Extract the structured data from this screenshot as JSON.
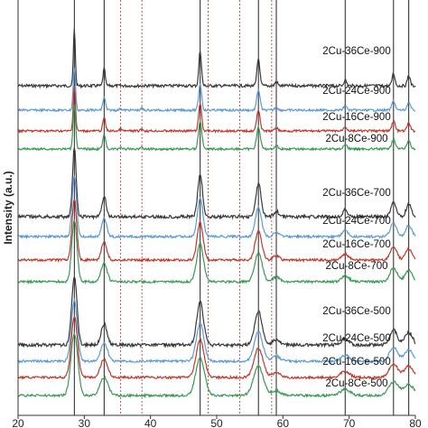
{
  "chart_data": {
    "type": "line",
    "xlabel": "",
    "ylabel": "Intensity (a.u.)",
    "xlim": [
      20,
      80
    ],
    "x_ticks": [
      "20",
      "30",
      "40",
      "50",
      "60",
      "70",
      "80"
    ],
    "grid": false,
    "legend": "inline labels at right",
    "reference_lines": {
      "solid": [
        28.5,
        33.0,
        47.5,
        56.3,
        59.0,
        69.4,
        76.7,
        79.0
      ],
      "dashed": [
        35.5,
        38.7,
        48.7,
        53.5,
        58.3
      ]
    },
    "series": [
      {
        "name": "2Cu-36Ce-900",
        "group": "900",
        "color": "#3a3a3a"
      },
      {
        "name": "2Cu-24Ce-900",
        "group": "900",
        "color": "#5b9bd5"
      },
      {
        "name": "2Cu-16Ce-900",
        "group": "900",
        "color": "#c0392b"
      },
      {
        "name": "2Cu-8Ce-900",
        "group": "900",
        "color": "#3a9a55"
      },
      {
        "name": "2Cu-36Ce-700",
        "group": "700",
        "color": "#3a3a3a"
      },
      {
        "name": "2Cu-24Ce-700",
        "group": "700",
        "color": "#5b9bd5"
      },
      {
        "name": "2Cu-16Ce-700",
        "group": "700",
        "color": "#c0392b"
      },
      {
        "name": "2Cu-8Ce-700",
        "group": "700",
        "color": "#3a9a55"
      },
      {
        "name": "2Cu-36Ce-500",
        "group": "500",
        "color": "#3a3a3a"
      },
      {
        "name": "2Cu-24Ce-500",
        "group": "500",
        "color": "#5b9bd5"
      },
      {
        "name": "2Cu-16Ce-500",
        "group": "500",
        "color": "#c0392b"
      },
      {
        "name": "2Cu-8Ce-500",
        "group": "500",
        "color": "#3a9a55"
      }
    ]
  }
}
